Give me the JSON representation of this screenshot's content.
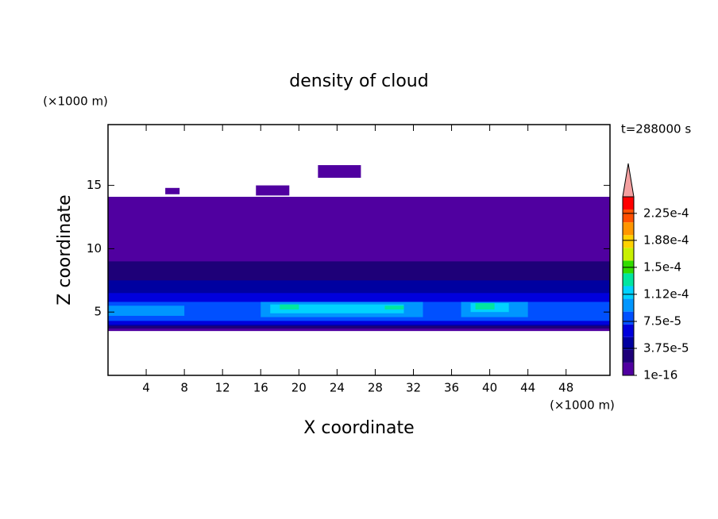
{
  "chart_data": {
    "type": "contour",
    "title": "density of cloud",
    "x_unit": "(×1000 m)",
    "y_unit": "(×1000 m)",
    "annotation": "t=288000 s",
    "xlabel": "X coordinate",
    "ylabel": "Z coordinate",
    "xlim": [
      0,
      52.6
    ],
    "ylim": [
      0,
      19.8
    ],
    "xticks": [
      4,
      8,
      12,
      16,
      20,
      24,
      28,
      32,
      36,
      40,
      44,
      48
    ],
    "yticks": [
      5,
      10,
      15
    ],
    "colorbar": {
      "lim": [
        0,
        0.000248
      ],
      "ticks": [
        1e-16,
        {
          "value": 3.75e-05,
          "label": "3.75e-5"
        },
        {
          "value": 7.5e-05,
          "label": "7.5e-5"
        },
        {
          "value": 0.0001125,
          "label": "1.12e-4"
        },
        {
          "value": 0.00015,
          "label": "1.5e-4"
        },
        {
          "value": 0.0001875,
          "label": "1.88e-4"
        },
        {
          "value": 0.000225,
          "label": "2.25e-4"
        }
      ],
      "colors": [
        "#5000a0",
        "#1e0078",
        "#0000a0",
        "#0000dc",
        "#0050ff",
        "#0096ff",
        "#00d2ff",
        "#00e6a0",
        "#32dc00",
        "#c8f000",
        "#ffd200",
        "#ff9600",
        "#ff5000",
        "#ff0000"
      ],
      "over_color": "#f4a0a0"
    },
    "layers": [
      {
        "level": 0,
        "xlim": [
          0,
          52.6
        ],
        "zlim": [
          3.5,
          14.1
        ]
      },
      {
        "level": 0,
        "xlim": [
          22,
          26.5
        ],
        "zlim": [
          15.6,
          16.6
        ]
      },
      {
        "level": 0,
        "xlim": [
          15.5,
          19
        ],
        "zlim": [
          14.2,
          15
        ]
      },
      {
        "level": 0,
        "xlim": [
          6,
          7.5
        ],
        "zlim": [
          14.3,
          14.8
        ]
      },
      {
        "level": 1,
        "xlim": [
          0,
          52.6
        ],
        "zlim": [
          3.7,
          9
        ]
      },
      {
        "level": 2,
        "xlim": [
          0,
          52.6
        ],
        "zlim": [
          3.9,
          7.5
        ]
      },
      {
        "level": 3,
        "xlim": [
          0,
          52.6
        ],
        "zlim": [
          4,
          6.5
        ]
      },
      {
        "level": 4,
        "xlim": [
          0,
          52.6
        ],
        "zlim": [
          4.3,
          5.8
        ]
      },
      {
        "level": 5,
        "xlim": [
          16,
          33
        ],
        "zlim": [
          4.6,
          5.8
        ]
      },
      {
        "level": 5,
        "xlim": [
          37,
          44
        ],
        "zlim": [
          4.6,
          5.8
        ]
      },
      {
        "level": 5,
        "xlim": [
          0,
          8
        ],
        "zlim": [
          4.7,
          5.5
        ]
      },
      {
        "level": 6,
        "xlim": [
          17,
          31
        ],
        "zlim": [
          4.9,
          5.6
        ]
      },
      {
        "level": 6,
        "xlim": [
          38,
          42
        ],
        "zlim": [
          5,
          5.7
        ]
      },
      {
        "level": 7,
        "xlim": [
          18,
          20
        ],
        "zlim": [
          5.2,
          5.6
        ]
      },
      {
        "level": 7,
        "xlim": [
          29,
          31
        ],
        "zlim": [
          5.2,
          5.5
        ]
      },
      {
        "level": 7,
        "xlim": [
          38.5,
          40.5
        ],
        "zlim": [
          5.2,
          5.7
        ]
      }
    ]
  }
}
